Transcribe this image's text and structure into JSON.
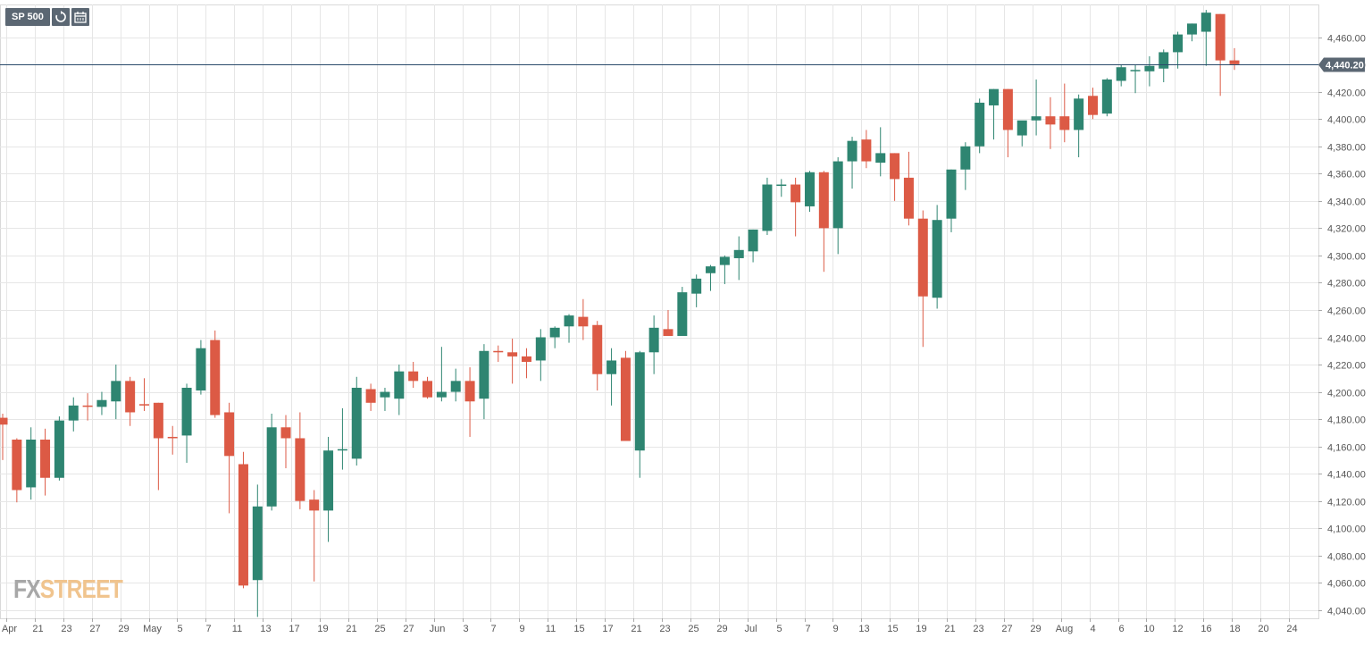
{
  "toolbar": {
    "symbol": "SP 500",
    "reload_icon": "reload-icon",
    "calendar_icon": "calendar-icon"
  },
  "logo": {
    "part1": "FX",
    "part2": "STREET"
  },
  "colors": {
    "up": "#2e8571",
    "down": "#dc5a45",
    "grid": "#e6e6e6",
    "price_line": "#2a4a6b",
    "label_bg": "#5b6773"
  },
  "chart_data": {
    "type": "candlestick",
    "title": "SP 500",
    "ylim": [
      4034,
      4484
    ],
    "y_ticks": [
      "4,040.00",
      "4,060.00",
      "4,080.00",
      "4,100.00",
      "4,120.00",
      "4,140.00",
      "4,160.00",
      "4,180.00",
      "4,200.00",
      "4,220.00",
      "4,240.00",
      "4,260.00",
      "4,280.00",
      "4,300.00",
      "4,320.00",
      "4,340.00",
      "4,360.00",
      "4,380.00",
      "4,400.00",
      "4,420.00",
      "4,440.00",
      "4,460.00"
    ],
    "x_labels": [
      "Apr",
      "21",
      "23",
      "27",
      "29",
      "May",
      "5",
      "7",
      "11",
      "13",
      "17",
      "19",
      "21",
      "25",
      "27",
      "Jun",
      "3",
      "7",
      "9",
      "11",
      "15",
      "17",
      "21",
      "23",
      "25",
      "29",
      "Jul",
      "5",
      "7",
      "9",
      "13",
      "15",
      "19",
      "21",
      "23",
      "27",
      "29",
      "Aug",
      "4",
      "6",
      "10",
      "12",
      "16",
      "18",
      "20",
      "24"
    ],
    "current_price": "4,440.20",
    "current_value": 4440.2,
    "grid": true,
    "candles": [
      {
        "o": 4181,
        "h": 4184,
        "l": 4150,
        "c": 4176
      },
      {
        "o": 4165,
        "h": 4166,
        "l": 4119,
        "c": 4128
      },
      {
        "o": 4130,
        "h": 4174,
        "l": 4121,
        "c": 4165
      },
      {
        "o": 4165,
        "h": 4173,
        "l": 4124,
        "c": 4137
      },
      {
        "o": 4137,
        "h": 4182,
        "l": 4135,
        "c": 4179
      },
      {
        "o": 4179,
        "h": 4196,
        "l": 4171,
        "c": 4190
      },
      {
        "o": 4190,
        "h": 4199,
        "l": 4179,
        "c": 4189
      },
      {
        "o": 4189,
        "h": 4200,
        "l": 4183,
        "c": 4194
      },
      {
        "o": 4193,
        "h": 4220,
        "l": 4180,
        "c": 4208
      },
      {
        "o": 4208,
        "h": 4211,
        "l": 4175,
        "c": 4185
      },
      {
        "o": 4191,
        "h": 4210,
        "l": 4186,
        "c": 4190
      },
      {
        "o": 4192,
        "h": 4192,
        "l": 4128,
        "c": 4166
      },
      {
        "o": 4167,
        "h": 4175,
        "l": 4154,
        "c": 4166
      },
      {
        "o": 4168,
        "h": 4206,
        "l": 4148,
        "c": 4203
      },
      {
        "o": 4201,
        "h": 4238,
        "l": 4198,
        "c": 4232
      },
      {
        "o": 4238,
        "h": 4245,
        "l": 4181,
        "c": 4183
      },
      {
        "o": 4185,
        "h": 4192,
        "l": 4111,
        "c": 4153
      },
      {
        "o": 4147,
        "h": 4156,
        "l": 4056,
        "c": 4058
      },
      {
        "o": 4062,
        "h": 4132,
        "l": 4035,
        "c": 4116
      },
      {
        "o": 4116,
        "h": 4184,
        "l": 4113,
        "c": 4174
      },
      {
        "o": 4174,
        "h": 4183,
        "l": 4144,
        "c": 4166
      },
      {
        "o": 4166,
        "h": 4185,
        "l": 4114,
        "c": 4120
      },
      {
        "o": 4121,
        "h": 4128,
        "l": 4061,
        "c": 4113
      },
      {
        "o": 4113,
        "h": 4167,
        "l": 4090,
        "c": 4157
      },
      {
        "o": 4157,
        "h": 4188,
        "l": 4143,
        "c": 4158
      },
      {
        "o": 4151,
        "h": 4211,
        "l": 4146,
        "c": 4203
      },
      {
        "o": 4202,
        "h": 4206,
        "l": 4186,
        "c": 4192
      },
      {
        "o": 4196,
        "h": 4203,
        "l": 4186,
        "c": 4200
      },
      {
        "o": 4195,
        "h": 4220,
        "l": 4183,
        "c": 4215
      },
      {
        "o": 4215,
        "h": 4222,
        "l": 4203,
        "c": 4208
      },
      {
        "o": 4208,
        "h": 4211,
        "l": 4195,
        "c": 4196
      },
      {
        "o": 4196,
        "h": 4233,
        "l": 4193,
        "c": 4200
      },
      {
        "o": 4200,
        "h": 4217,
        "l": 4193,
        "c": 4208
      },
      {
        "o": 4208,
        "h": 4218,
        "l": 4167,
        "c": 4193
      },
      {
        "o": 4195,
        "h": 4235,
        "l": 4180,
        "c": 4230
      },
      {
        "o": 4230,
        "h": 4234,
        "l": 4222,
        "c": 4229
      },
      {
        "o": 4229,
        "h": 4239,
        "l": 4206,
        "c": 4226
      },
      {
        "o": 4226,
        "h": 4232,
        "l": 4210,
        "c": 4222
      },
      {
        "o": 4223,
        "h": 4246,
        "l": 4208,
        "c": 4240
      },
      {
        "o": 4240,
        "h": 4248,
        "l": 4232,
        "c": 4247
      },
      {
        "o": 4248,
        "h": 4257,
        "l": 4236,
        "c": 4256
      },
      {
        "o": 4255,
        "h": 4268,
        "l": 4238,
        "c": 4248
      },
      {
        "o": 4249,
        "h": 4252,
        "l": 4201,
        "c": 4213
      },
      {
        "o": 4213,
        "h": 4232,
        "l": 4190,
        "c": 4223
      },
      {
        "o": 4225,
        "h": 4230,
        "l": 4165,
        "c": 4164
      },
      {
        "o": 4157,
        "h": 4230,
        "l": 4137,
        "c": 4229
      },
      {
        "o": 4229,
        "h": 4256,
        "l": 4213,
        "c": 4247
      },
      {
        "o": 4246,
        "h": 4260,
        "l": 4244,
        "c": 4241
      },
      {
        "o": 4241,
        "h": 4277,
        "l": 4242,
        "c": 4273
      },
      {
        "o": 4272,
        "h": 4286,
        "l": 4262,
        "c": 4283
      },
      {
        "o": 4287,
        "h": 4293,
        "l": 4274,
        "c": 4292
      },
      {
        "o": 4293,
        "h": 4300,
        "l": 4279,
        "c": 4299
      },
      {
        "o": 4298,
        "h": 4314,
        "l": 4282,
        "c": 4304
      },
      {
        "o": 4303,
        "h": 4319,
        "l": 4295,
        "c": 4319
      },
      {
        "o": 4318,
        "h": 4357,
        "l": 4315,
        "c": 4352
      },
      {
        "o": 4352,
        "h": 4356,
        "l": 4343,
        "c": 4352
      },
      {
        "o": 4352,
        "h": 4357,
        "l": 4314,
        "c": 4339
      },
      {
        "o": 4336,
        "h": 4362,
        "l": 4332,
        "c": 4361
      },
      {
        "o": 4361,
        "h": 4362,
        "l": 4288,
        "c": 4320
      },
      {
        "o": 4320,
        "h": 4372,
        "l": 4301,
        "c": 4369
      },
      {
        "o": 4369,
        "h": 4387,
        "l": 4349,
        "c": 4384
      },
      {
        "o": 4385,
        "h": 4392,
        "l": 4364,
        "c": 4369
      },
      {
        "o": 4368,
        "h": 4394,
        "l": 4358,
        "c": 4375
      },
      {
        "o": 4375,
        "h": 4375,
        "l": 4340,
        "c": 4356
      },
      {
        "o": 4357,
        "h": 4376,
        "l": 4322,
        "c": 4327
      },
      {
        "o": 4327,
        "h": 4333,
        "l": 4233,
        "c": 4270
      },
      {
        "o": 4269,
        "h": 4337,
        "l": 4261,
        "c": 4326
      },
      {
        "o": 4327,
        "h": 4363,
        "l": 4317,
        "c": 4363
      },
      {
        "o": 4363,
        "h": 4383,
        "l": 4348,
        "c": 4380
      },
      {
        "o": 4380,
        "h": 4415,
        "l": 4375,
        "c": 4412
      },
      {
        "o": 4410,
        "h": 4422,
        "l": 4385,
        "c": 4422
      },
      {
        "o": 4422,
        "h": 4422,
        "l": 4372,
        "c": 4392
      },
      {
        "o": 4388,
        "h": 4398,
        "l": 4380,
        "c": 4399
      },
      {
        "o": 4399,
        "h": 4429,
        "l": 4388,
        "c": 4402
      },
      {
        "o": 4402,
        "h": 4416,
        "l": 4378,
        "c": 4396
      },
      {
        "o": 4402,
        "h": 4426,
        "l": 4383,
        "c": 4392
      },
      {
        "o": 4392,
        "h": 4418,
        "l": 4372,
        "c": 4415
      },
      {
        "o": 4417,
        "h": 4423,
        "l": 4400,
        "c": 4403
      },
      {
        "o": 4404,
        "h": 4430,
        "l": 4402,
        "c": 4429
      },
      {
        "o": 4428,
        "h": 4440,
        "l": 4424,
        "c": 4438
      },
      {
        "o": 4436,
        "h": 4440,
        "l": 4419,
        "c": 4436
      },
      {
        "o": 4435,
        "h": 4446,
        "l": 4424,
        "c": 4439
      },
      {
        "o": 4437,
        "h": 4451,
        "l": 4427,
        "c": 4449
      },
      {
        "o": 4449,
        "h": 4464,
        "l": 4437,
        "c": 4462
      },
      {
        "o": 4462,
        "h": 4470,
        "l": 4457,
        "c": 4470
      },
      {
        "o": 4464,
        "h": 4480,
        "l": 4439,
        "c": 4478
      },
      {
        "o": 4477,
        "h": 4477,
        "l": 4417,
        "c": 4443
      },
      {
        "o": 4443,
        "h": 4452,
        "l": 4436,
        "c": 4440.2
      }
    ]
  }
}
